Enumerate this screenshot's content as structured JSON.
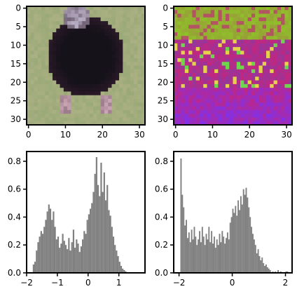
{
  "chart_data": [
    {
      "type": "heatmap",
      "description_label": "image-panel",
      "xlim": [
        -0.5,
        31.5
      ],
      "ylim": [
        31.5,
        -0.5
      ],
      "xticks": [
        0,
        10,
        20,
        30
      ],
      "yticks": [
        0,
        5,
        10,
        15,
        20,
        25,
        30
      ],
      "grid_size": [
        32,
        32
      ],
      "palette": {
        "background": "#9aa977",
        "background_alt": "#b6b58c",
        "subject_dark": "#15121a",
        "subject_mid": "#2e1b2a",
        "head_light": "#b8aec4",
        "legs": "#c9a4b2"
      }
    },
    {
      "type": "heatmap",
      "description_label": "image-panel",
      "xlim": [
        -0.5,
        31.5
      ],
      "ylim": [
        31.5,
        -0.5
      ],
      "xticks": [
        0,
        10,
        20,
        30
      ],
      "yticks": [
        0,
        5,
        10,
        15,
        20,
        25,
        30
      ],
      "grid_size": [
        32,
        32
      ],
      "palette": {
        "top_green": "#8fbf2a",
        "top_olive": "#9a9a3a",
        "mid_magenta": "#c3267e",
        "mid_purple": "#8a3aa3",
        "bottom_violet": "#8c2fd6",
        "highlight_yellow": "#e6d24a",
        "highlight_green": "#6ed64c"
      }
    },
    {
      "type": "bar",
      "histogram": true,
      "bar_color": "#808080",
      "xlim": [
        -2.0,
        1.85
      ],
      "ylim": [
        0,
        0.87
      ],
      "xticks": [
        -2,
        -1,
        0,
        1
      ],
      "yticks": [
        0.0,
        0.2,
        0.4,
        0.6,
        0.8
      ],
      "xticklabels": [
        "−2",
        "−1",
        "0",
        "1"
      ],
      "yticklabels": [
        "0.0",
        "0.2",
        "0.4",
        "0.6",
        "0.8"
      ],
      "bins": [
        [
          -1.8,
          0.06
        ],
        [
          -1.75,
          0.08
        ],
        [
          -1.7,
          0.16
        ],
        [
          -1.65,
          0.22
        ],
        [
          -1.6,
          0.26
        ],
        [
          -1.55,
          0.3
        ],
        [
          -1.5,
          0.28
        ],
        [
          -1.45,
          0.33
        ],
        [
          -1.4,
          0.38
        ],
        [
          -1.35,
          0.44
        ],
        [
          -1.3,
          0.49
        ],
        [
          -1.25,
          0.46
        ],
        [
          -1.2,
          0.38
        ],
        [
          -1.15,
          0.44
        ],
        [
          -1.1,
          0.33
        ],
        [
          -1.05,
          0.24
        ],
        [
          -1.0,
          0.26
        ],
        [
          -0.95,
          0.18
        ],
        [
          -0.9,
          0.21
        ],
        [
          -0.85,
          0.28
        ],
        [
          -0.8,
          0.23
        ],
        [
          -0.75,
          0.2
        ],
        [
          -0.7,
          0.17
        ],
        [
          -0.65,
          0.25
        ],
        [
          -0.6,
          0.16
        ],
        [
          -0.55,
          0.22
        ],
        [
          -0.5,
          0.31
        ],
        [
          -0.45,
          0.18
        ],
        [
          -0.4,
          0.24
        ],
        [
          -0.35,
          0.21
        ],
        [
          -0.3,
          0.15
        ],
        [
          -0.25,
          0.19
        ],
        [
          -0.2,
          0.24
        ],
        [
          -0.15,
          0.3
        ],
        [
          -0.1,
          0.28
        ],
        [
          -0.05,
          0.38
        ],
        [
          0.0,
          0.42
        ],
        [
          0.05,
          0.46
        ],
        [
          0.1,
          0.5
        ],
        [
          0.15,
          0.58
        ],
        [
          0.2,
          0.71
        ],
        [
          0.25,
          0.83
        ],
        [
          0.3,
          0.63
        ],
        [
          0.35,
          0.55
        ],
        [
          0.4,
          0.79
        ],
        [
          0.45,
          0.58
        ],
        [
          0.5,
          0.72
        ],
        [
          0.55,
          0.52
        ],
        [
          0.6,
          0.63
        ],
        [
          0.65,
          0.45
        ],
        [
          0.7,
          0.41
        ],
        [
          0.75,
          0.33
        ],
        [
          0.8,
          0.26
        ],
        [
          0.85,
          0.2
        ],
        [
          0.9,
          0.16
        ],
        [
          0.95,
          0.12
        ],
        [
          1.0,
          0.08
        ],
        [
          1.05,
          0.05
        ],
        [
          1.1,
          0.03
        ],
        [
          1.15,
          0.02
        ],
        [
          1.2,
          0.01
        ]
      ]
    },
    {
      "type": "bar",
      "histogram": true,
      "bar_color": "#808080",
      "xlim": [
        -2.2,
        2.25
      ],
      "ylim": [
        0,
        0.87
      ],
      "xticks": [
        -2,
        0,
        2
      ],
      "yticks": [
        0.0,
        0.2,
        0.4,
        0.6,
        0.8
      ],
      "xticklabels": [
        "−2",
        "0",
        "2"
      ],
      "yticklabels": [
        "0.0",
        "0.2",
        "0.4",
        "0.6",
        "0.8"
      ],
      "bins": [
        [
          -1.95,
          0.82
        ],
        [
          -1.9,
          0.56
        ],
        [
          -1.85,
          0.47
        ],
        [
          -1.8,
          0.34
        ],
        [
          -1.75,
          0.38
        ],
        [
          -1.7,
          0.25
        ],
        [
          -1.65,
          0.29
        ],
        [
          -1.6,
          0.22
        ],
        [
          -1.55,
          0.31
        ],
        [
          -1.5,
          0.24
        ],
        [
          -1.45,
          0.33
        ],
        [
          -1.4,
          0.26
        ],
        [
          -1.35,
          0.2
        ],
        [
          -1.3,
          0.24
        ],
        [
          -1.25,
          0.3
        ],
        [
          -1.2,
          0.22
        ],
        [
          -1.15,
          0.33
        ],
        [
          -1.1,
          0.26
        ],
        [
          -1.05,
          0.2
        ],
        [
          -1.0,
          0.28
        ],
        [
          -0.95,
          0.24
        ],
        [
          -0.9,
          0.33
        ],
        [
          -0.85,
          0.22
        ],
        [
          -0.8,
          0.3
        ],
        [
          -0.75,
          0.21
        ],
        [
          -0.7,
          0.26
        ],
        [
          -0.65,
          0.18
        ],
        [
          -0.6,
          0.24
        ],
        [
          -0.55,
          0.2
        ],
        [
          -0.5,
          0.28
        ],
        [
          -0.45,
          0.22
        ],
        [
          -0.4,
          0.3
        ],
        [
          -0.35,
          0.26
        ],
        [
          -0.3,
          0.21
        ],
        [
          -0.25,
          0.25
        ],
        [
          -0.2,
          0.29
        ],
        [
          -0.15,
          0.24
        ],
        [
          -0.1,
          0.36
        ],
        [
          -0.05,
          0.4
        ],
        [
          0.0,
          0.46
        ],
        [
          0.05,
          0.43
        ],
        [
          0.1,
          0.48
        ],
        [
          0.15,
          0.41
        ],
        [
          0.2,
          0.52
        ],
        [
          0.25,
          0.45
        ],
        [
          0.3,
          0.55
        ],
        [
          0.35,
          0.49
        ],
        [
          0.4,
          0.6
        ],
        [
          0.45,
          0.56
        ],
        [
          0.5,
          0.61
        ],
        [
          0.55,
          0.54
        ],
        [
          0.6,
          0.47
        ],
        [
          0.65,
          0.4
        ],
        [
          0.7,
          0.33
        ],
        [
          0.75,
          0.28
        ],
        [
          0.8,
          0.24
        ],
        [
          0.85,
          0.2
        ],
        [
          0.9,
          0.14
        ],
        [
          0.95,
          0.17
        ],
        [
          1.0,
          0.12
        ],
        [
          1.05,
          0.09
        ],
        [
          1.1,
          0.11
        ],
        [
          1.15,
          0.07
        ],
        [
          1.2,
          0.05
        ],
        [
          1.25,
          0.06
        ],
        [
          1.3,
          0.04
        ],
        [
          1.35,
          0.03
        ],
        [
          1.4,
          0.02
        ],
        [
          1.5,
          0.01
        ],
        [
          1.6,
          0.01
        ],
        [
          1.7,
          0.02
        ],
        [
          1.8,
          0.01
        ],
        [
          2.0,
          0.01
        ],
        [
          2.05,
          0.01
        ]
      ]
    }
  ]
}
